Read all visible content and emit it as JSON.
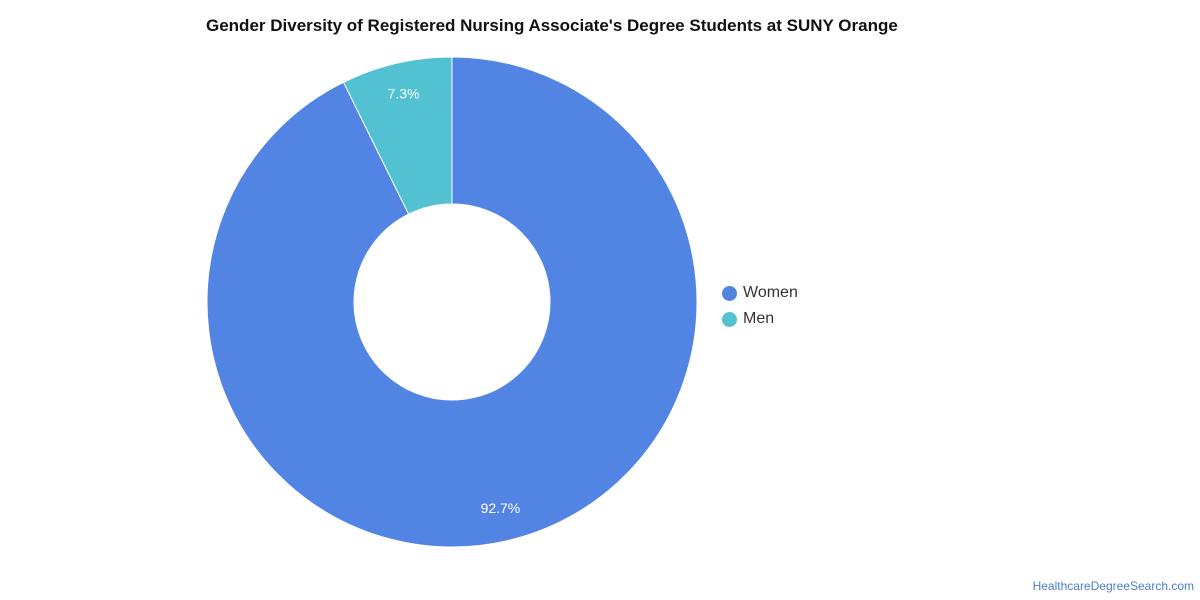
{
  "chart_data": {
    "type": "pie",
    "title": "Gender Diversity of Registered Nursing Associate's Degree Students at SUNY Orange",
    "donut": true,
    "categories": [
      "Women",
      "Men"
    ],
    "values": [
      92.7,
      7.3
    ],
    "value_labels": [
      "92.7%",
      "7.3%"
    ],
    "colors": [
      "#5284e3",
      "#52c1d1"
    ],
    "legend_position": "right"
  },
  "watermark": "HealthcareDegreeSearch.com"
}
